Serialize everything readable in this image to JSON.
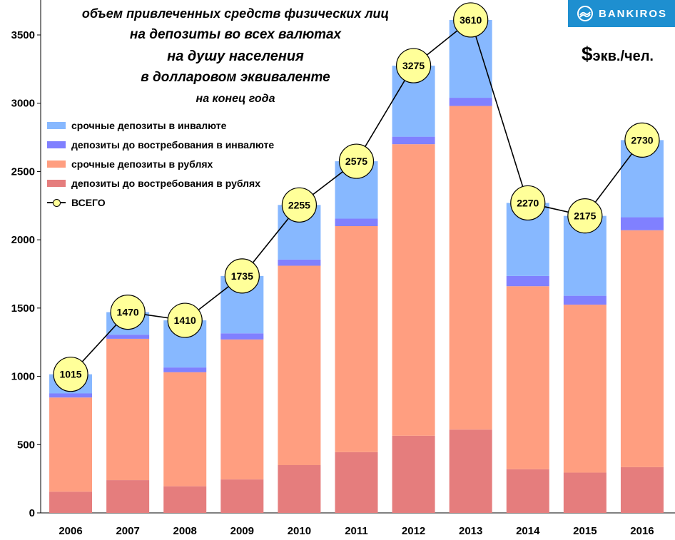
{
  "title_lines": [
    "объем привлеченных средств физических лиц",
    "на депозиты во всех валютах",
    "на душу населения",
    "в долларовом эквиваленте",
    "на конец года"
  ],
  "unit": {
    "symbol": "$",
    "text": "экв./чел."
  },
  "logo": {
    "text": "BANKIROS",
    "icon": "bankiros-logo-icon"
  },
  "colors": {
    "term_fx": "#87b8ff",
    "demand_fx": "#8080ff",
    "term_rub": "#ff9e80",
    "demand_rub": "#e57d7d",
    "total_marker": "#ffff99",
    "logo_bg": "#1e8fd0"
  },
  "chart_data": {
    "type": "bar",
    "stacked": true,
    "categories": [
      "2006",
      "2007",
      "2008",
      "2009",
      "2010",
      "2011",
      "2012",
      "2013",
      "2014",
      "2015",
      "2016"
    ],
    "series": [
      {
        "name": "депозиты до востребования в рублях",
        "key": "demand_rub",
        "values": [
          155,
          240,
          195,
          245,
          350,
          445,
          565,
          610,
          320,
          295,
          335
        ]
      },
      {
        "name": "срочные депозиты в рублях",
        "key": "term_rub",
        "values": [
          690,
          1035,
          835,
          1025,
          1460,
          1655,
          2135,
          2370,
          1340,
          1230,
          1735
        ]
      },
      {
        "name": "депозиты до востребования в инвалюте",
        "key": "demand_fx",
        "values": [
          30,
          30,
          35,
          45,
          45,
          55,
          55,
          60,
          75,
          65,
          95
        ]
      },
      {
        "name": "срочные депозиты в инвалюте",
        "key": "term_fx",
        "values": [
          140,
          165,
          345,
          420,
          400,
          420,
          520,
          570,
          535,
          585,
          565
        ]
      }
    ],
    "total": {
      "name": "ВСЕГО",
      "values": [
        1015,
        1470,
        1410,
        1735,
        2255,
        2575,
        3275,
        3610,
        2270,
        2175,
        2730
      ]
    },
    "ylim": [
      0,
      3600
    ],
    "yticks": [
      0,
      500,
      1000,
      1500,
      2000,
      2500,
      3000,
      3500
    ],
    "grid": false,
    "legend_position": "top-left"
  }
}
